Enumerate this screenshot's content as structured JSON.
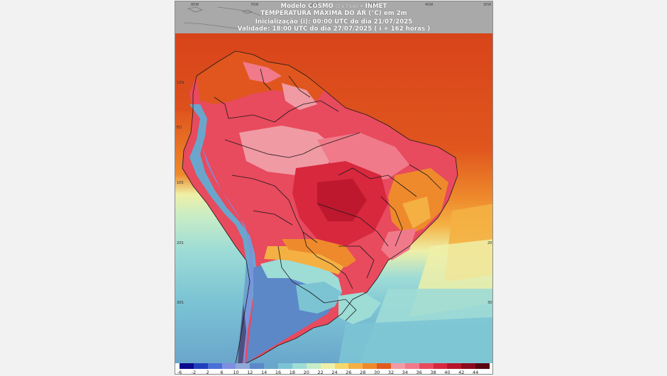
{
  "header": {
    "model_line": "Modelo COSMO",
    "model_res": "(7 x 7 km)",
    "model_org": " - INMET",
    "title": "TEMPERATURA MÁXIMA DO AR (°C) em 2m",
    "init": "Inicialização (i): 00:00 UTC do dia 21/07/2025",
    "valid": "Validade: 18:00 UTC do dia 27/07/2025 ( i + 162 horas )"
  },
  "longitude_labels": [
    "80W",
    "70W",
    "60W",
    "50W",
    "40W",
    "30W"
  ],
  "latitude_labels": [
    "10N",
    "EQ",
    "10S",
    "20S",
    "30S",
    "40S",
    "50S"
  ],
  "colorbar": {
    "labels": [
      "-6",
      "-2",
      "2",
      "6",
      "10",
      "12",
      "14",
      "16",
      "18",
      "20",
      "22",
      "24",
      "26",
      "28",
      "30",
      "32",
      "34",
      "36",
      "38",
      "40",
      "42",
      "44"
    ],
    "colors": [
      "#0a0a8c",
      "#1f3fbf",
      "#4a6fd8",
      "#7d8fe0",
      "#8fa8d8",
      "#5c88c8",
      "#6aa6cc",
      "#7cc4d4",
      "#9edcd6",
      "#c7ecc6",
      "#eef0a8",
      "#f6d76a",
      "#f4b043",
      "#ee8a2c",
      "#e35a1e",
      "#f09aa4",
      "#f07a8a",
      "#e84a5e",
      "#d8283e",
      "#b8142a",
      "#8c0a1c",
      "#5a0410"
    ]
  }
}
